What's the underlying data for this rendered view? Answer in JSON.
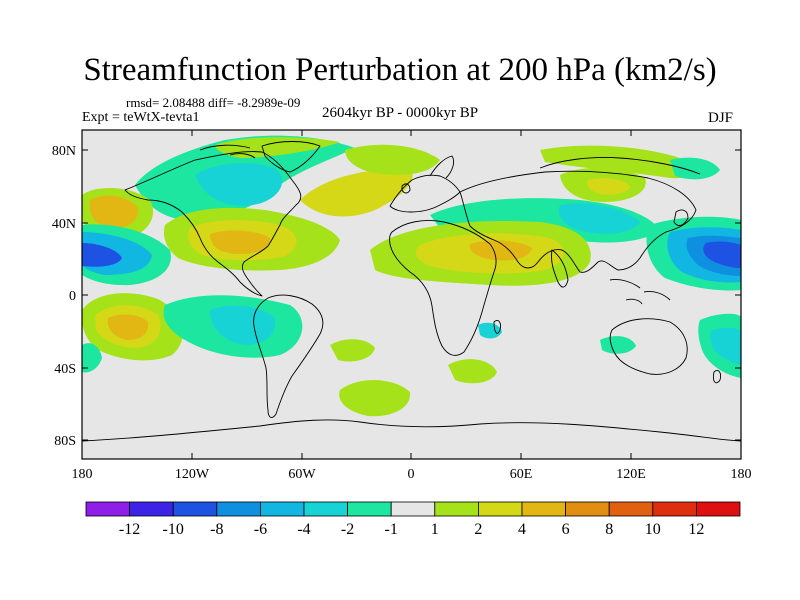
{
  "title": "Streamfunction Perturbation at 200 hPa (km2/s)",
  "stats_text": "rmsd= 2.08488  diff= -8.2989e-09",
  "experiment_text": "Expt = teWtX-tevta1",
  "period_text": "2604kyr BP - 0000kyr BP",
  "season_text": "DJF",
  "lat_labels": [
    "80N",
    "40N",
    "0",
    "40S",
    "80S"
  ],
  "lon_labels": [
    "180",
    "120W",
    "60W",
    "0",
    "60E",
    "120E",
    "180"
  ],
  "colorbar": {
    "labels": [
      "-12",
      "-10",
      "-8",
      "-6",
      "-4",
      "-2",
      "-1",
      "1",
      "2",
      "4",
      "6",
      "8",
      "10",
      "12"
    ],
    "colors": [
      "#8f1fe8",
      "#3d23e6",
      "#1d52e2",
      "#0f8fe0",
      "#12b6e3",
      "#17d3d6",
      "#1ce6a0",
      "#e6e6e6",
      "#a6e21a",
      "#d4d817",
      "#e2b713",
      "#e28e11",
      "#e0600f",
      "#de2e0d",
      "#e01010"
    ]
  },
  "colors": {
    "background": "#e6e6e6",
    "land_outline": "#000000"
  }
}
